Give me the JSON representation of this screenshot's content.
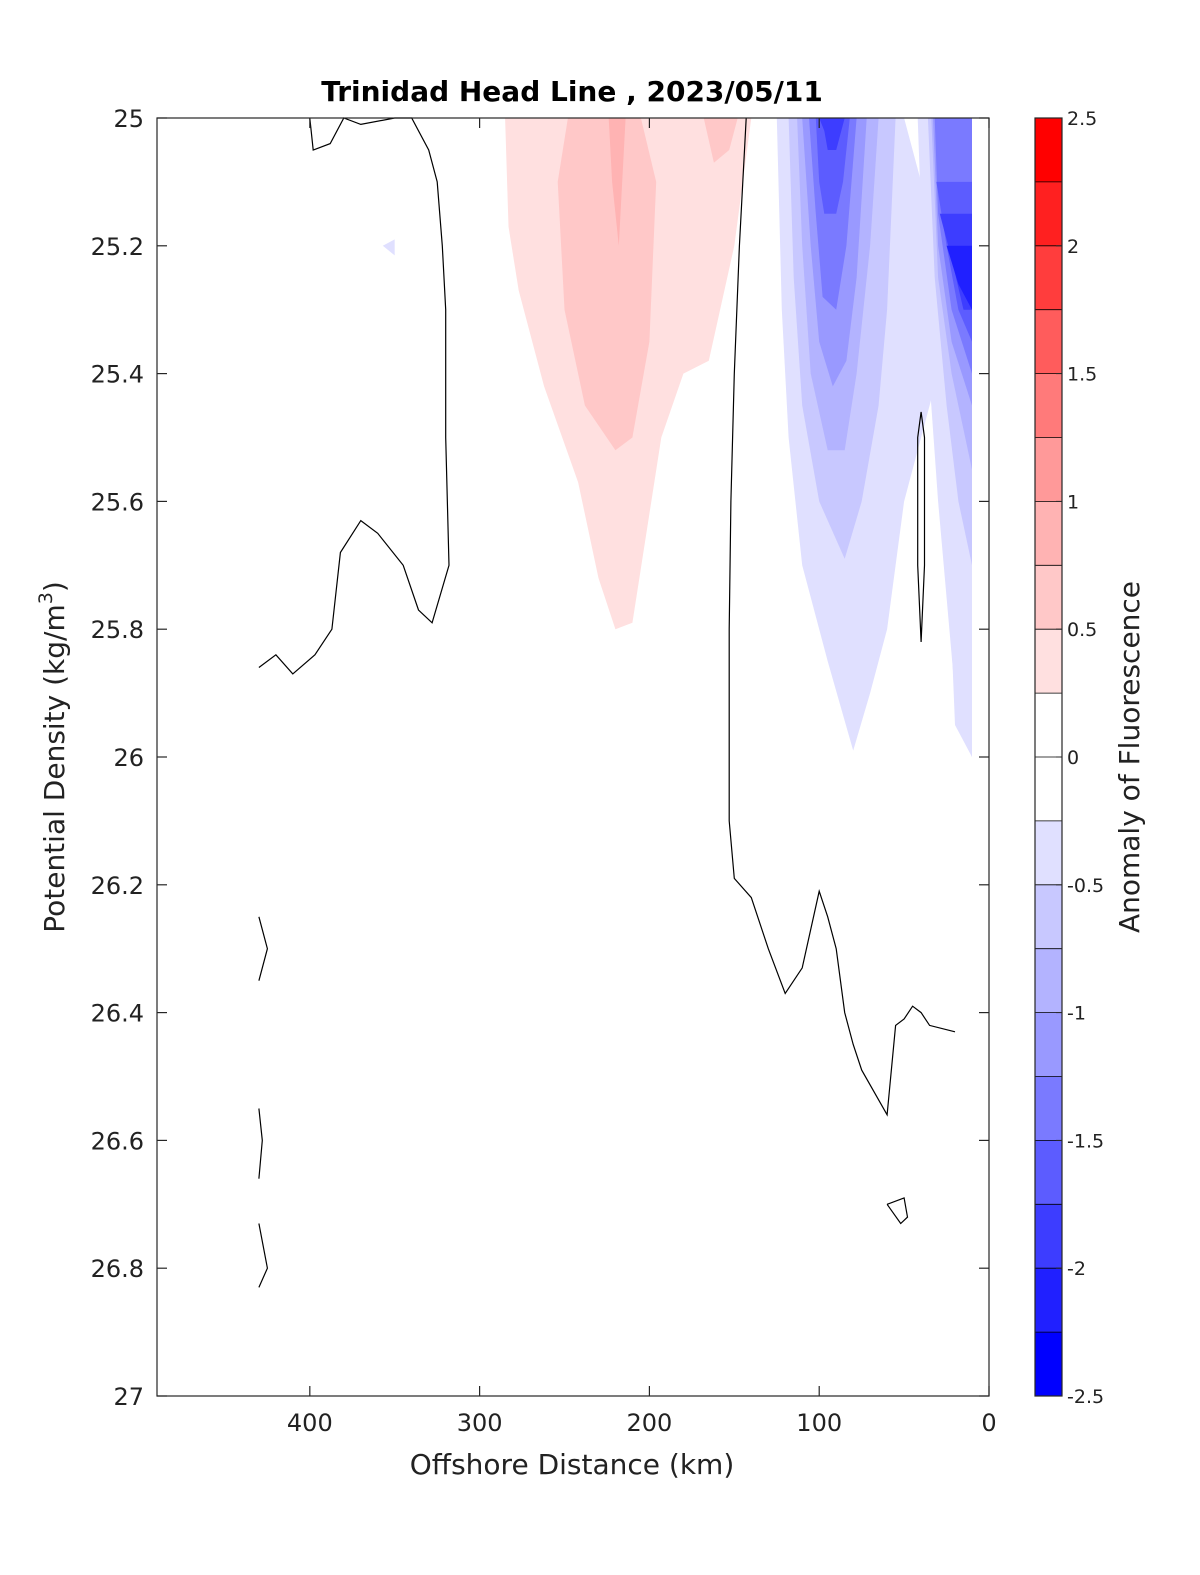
{
  "chart_data": {
    "type": "contour",
    "title": "Trinidad Head Line , 2023/05/11",
    "xlabel": "Offshore Distance (km)",
    "ylabel_main": "Potential Density (kg/m",
    "ylabel_sup": "3",
    "ylabel_close": ")",
    "xlim": [
      490,
      0
    ],
    "ylim": [
      25,
      27
    ],
    "x_reversed": true,
    "y_reversed": true,
    "xticks": [
      400,
      300,
      200,
      100,
      0
    ],
    "yticks": [
      25,
      25.2,
      25.4,
      25.6,
      25.8,
      26,
      26.2,
      26.4,
      26.6,
      26.8,
      27
    ],
    "grid": false,
    "colorbar": {
      "label": "Anomaly of Fluorescence",
      "range": [
        -2.5,
        2.5
      ],
      "ticks": [
        2.5,
        2,
        1.5,
        1,
        0.5,
        0,
        -0.5,
        -1,
        -1.5,
        -2,
        -2.5
      ],
      "levels": [
        {
          "from": 2.25,
          "to": 2.5,
          "color": "#ff0000"
        },
        {
          "from": 2.0,
          "to": 2.25,
          "color": "#ff2020"
        },
        {
          "from": 1.75,
          "to": 2.0,
          "color": "#ff3d3d"
        },
        {
          "from": 1.5,
          "to": 1.75,
          "color": "#ff5c5c"
        },
        {
          "from": 1.25,
          "to": 1.5,
          "color": "#ff7a7a"
        },
        {
          "from": 1.0,
          "to": 1.25,
          "color": "#ff9999"
        },
        {
          "from": 0.75,
          "to": 1.0,
          "color": "#ffb3b3"
        },
        {
          "from": 0.5,
          "to": 0.75,
          "color": "#ffc8c8"
        },
        {
          "from": 0.25,
          "to": 0.5,
          "color": "#ffe0e0"
        },
        {
          "from": 0.0,
          "to": 0.25,
          "color": "#ffffff"
        },
        {
          "from": -0.25,
          "to": 0.0,
          "color": "#ffffff"
        },
        {
          "from": -0.5,
          "to": -0.25,
          "color": "#e0e0ff"
        },
        {
          "from": -0.75,
          "to": -0.5,
          "color": "#c8c8ff"
        },
        {
          "from": -1.0,
          "to": -0.75,
          "color": "#b3b3ff"
        },
        {
          "from": -1.25,
          "to": -1.0,
          "color": "#9999ff"
        },
        {
          "from": -1.5,
          "to": -1.25,
          "color": "#7a7aff"
        },
        {
          "from": -1.75,
          "to": -1.5,
          "color": "#5c5cff"
        },
        {
          "from": -2.0,
          "to": -1.75,
          "color": "#3d3dff"
        },
        {
          "from": -2.25,
          "to": -2.0,
          "color": "#2020ff"
        },
        {
          "from": -2.5,
          "to": -2.25,
          "color": "#0000ff"
        }
      ]
    },
    "filled_regions": [
      {
        "level": 0.375,
        "color": "#ffe0e0",
        "points": [
          [
            285,
            25
          ],
          [
            283,
            25.17
          ],
          [
            277,
            25.27
          ],
          [
            262,
            25.42
          ],
          [
            242,
            25.57
          ],
          [
            230,
            25.72
          ],
          [
            220,
            25.8
          ],
          [
            210,
            25.79
          ],
          [
            193,
            25.5
          ],
          [
            180,
            25.4
          ],
          [
            165,
            25.38
          ],
          [
            150,
            25.2
          ],
          [
            140,
            25
          ],
          [
            285,
            25
          ]
        ]
      },
      {
        "level": 0.625,
        "color": "#ffc8c8",
        "points": [
          [
            248,
            25
          ],
          [
            254,
            25.1
          ],
          [
            250,
            25.3
          ],
          [
            238,
            25.45
          ],
          [
            220,
            25.52
          ],
          [
            210,
            25.5
          ],
          [
            200,
            25.35
          ],
          [
            196,
            25.1
          ],
          [
            205,
            25
          ],
          [
            248,
            25
          ]
        ]
      },
      {
        "level": 0.875,
        "color": "#ffb3b3",
        "points": [
          [
            224,
            25
          ],
          [
            222,
            25.1
          ],
          [
            218,
            25.2
          ],
          [
            216,
            25.1
          ],
          [
            214,
            25
          ],
          [
            224,
            25
          ]
        ]
      },
      {
        "level": 0.625,
        "color": "#ffc8c8",
        "points": [
          [
            168,
            25
          ],
          [
            162,
            25.07
          ],
          [
            153,
            25.05
          ],
          [
            148,
            25
          ],
          [
            168,
            25
          ]
        ]
      },
      {
        "level": -0.375,
        "color": "#e0e0ff",
        "points": [
          [
            125,
            25
          ],
          [
            122,
            25.3
          ],
          [
            118,
            25.5
          ],
          [
            110,
            25.7
          ],
          [
            95,
            25.85
          ],
          [
            80,
            25.99
          ],
          [
            70,
            25.9
          ],
          [
            60,
            25.8
          ],
          [
            50,
            25.6
          ],
          [
            40,
            25.5
          ],
          [
            30,
            25.4
          ],
          [
            20,
            25.4
          ],
          [
            20,
            25.6
          ],
          [
            10,
            25.62
          ],
          [
            10,
            26
          ],
          [
            20,
            25.95
          ],
          [
            30,
            25.3
          ],
          [
            40,
            25.1
          ],
          [
            50,
            25
          ],
          [
            125,
            25
          ]
        ]
      },
      {
        "level": -0.625,
        "color": "#c8c8ff",
        "points": [
          [
            118,
            25
          ],
          [
            115,
            25.25
          ],
          [
            110,
            25.45
          ],
          [
            100,
            25.6
          ],
          [
            85,
            25.69
          ],
          [
            75,
            25.6
          ],
          [
            65,
            25.45
          ],
          [
            60,
            25.3
          ],
          [
            55,
            25
          ],
          [
            118,
            25
          ]
        ]
      },
      {
        "level": -0.875,
        "color": "#b3b3ff",
        "points": [
          [
            113,
            25
          ],
          [
            110,
            25.2
          ],
          [
            105,
            25.4
          ],
          [
            95,
            25.52
          ],
          [
            85,
            25.52
          ],
          [
            78,
            25.4
          ],
          [
            70,
            25.2
          ],
          [
            65,
            25
          ],
          [
            113,
            25
          ]
        ]
      },
      {
        "level": -1.125,
        "color": "#9999ff",
        "points": [
          [
            110,
            25
          ],
          [
            105,
            25.2
          ],
          [
            100,
            25.35
          ],
          [
            92,
            25.42
          ],
          [
            84,
            25.38
          ],
          [
            78,
            25.25
          ],
          [
            72,
            25
          ],
          [
            110,
            25
          ]
        ]
      },
      {
        "level": -1.375,
        "color": "#7a7aff",
        "points": [
          [
            106,
            25
          ],
          [
            102,
            25.15
          ],
          [
            98,
            25.28
          ],
          [
            90,
            25.3
          ],
          [
            84,
            25.2
          ],
          [
            78,
            25
          ],
          [
            106,
            25
          ]
        ]
      },
      {
        "level": -1.625,
        "color": "#5c5cff",
        "points": [
          [
            102,
            25
          ],
          [
            100,
            25.1
          ],
          [
            97,
            25.15
          ],
          [
            90,
            25.15
          ],
          [
            86,
            25.1
          ],
          [
            82,
            25
          ],
          [
            102,
            25
          ]
        ]
      },
      {
        "level": -1.875,
        "color": "#3d3dff",
        "points": [
          [
            100,
            25
          ],
          [
            97,
            25.02
          ],
          [
            95,
            25.05
          ],
          [
            90,
            25.05
          ],
          [
            85,
            25
          ],
          [
            100,
            25
          ]
        ]
      },
      {
        "level": -0.375,
        "color": "#e0e0ff",
        "points": [
          [
            42,
            25
          ],
          [
            38,
            25.3
          ],
          [
            30,
            25.6
          ],
          [
            20,
            25.9
          ],
          [
            10,
            26
          ],
          [
            10,
            25
          ],
          [
            42,
            25
          ]
        ]
      },
      {
        "level": -0.625,
        "color": "#c8c8ff",
        "points": [
          [
            36,
            25
          ],
          [
            32,
            25.25
          ],
          [
            25,
            25.45
          ],
          [
            18,
            25.6
          ],
          [
            10,
            25.7
          ],
          [
            10,
            25
          ],
          [
            36,
            25
          ]
        ]
      },
      {
        "level": -0.875,
        "color": "#b3b3ff",
        "points": [
          [
            34,
            25
          ],
          [
            30,
            25.25
          ],
          [
            22,
            25.4
          ],
          [
            10,
            25.55
          ],
          [
            10,
            25
          ],
          [
            34,
            25
          ]
        ]
      },
      {
        "level": -1.125,
        "color": "#9999ff",
        "points": [
          [
            33,
            25
          ],
          [
            30,
            25.2
          ],
          [
            22,
            25.35
          ],
          [
            10,
            25.45
          ],
          [
            10,
            25
          ],
          [
            33,
            25
          ]
        ]
      },
      {
        "level": -1.375,
        "color": "#7a7aff",
        "points": [
          [
            32,
            25
          ],
          [
            30,
            25.15
          ],
          [
            22,
            25.3
          ],
          [
            10,
            25.4
          ],
          [
            10,
            25
          ],
          [
            32,
            25
          ]
        ]
      },
      {
        "level": -1.625,
        "color": "#5c5cff",
        "points": [
          [
            31,
            25.1
          ],
          [
            25,
            25.2
          ],
          [
            18,
            25.3
          ],
          [
            10,
            25.35
          ],
          [
            10,
            25.1
          ],
          [
            31,
            25.1
          ]
        ]
      },
      {
        "level": -1.875,
        "color": "#3d3dff",
        "points": [
          [
            29,
            25.15
          ],
          [
            22,
            25.22
          ],
          [
            15,
            25.3
          ],
          [
            10,
            25.3
          ],
          [
            10,
            25.15
          ],
          [
            29,
            25.15
          ]
        ]
      },
      {
        "level": -2.125,
        "color": "#2020ff",
        "points": [
          [
            25,
            25.2
          ],
          [
            18,
            25.26
          ],
          [
            10,
            25.3
          ],
          [
            10,
            25.2
          ],
          [
            25,
            25.2
          ]
        ]
      },
      {
        "level": -0.375,
        "color": "#e0e0ff",
        "points": [
          [
            357,
            25.2
          ],
          [
            350,
            25.19
          ],
          [
            350,
            25.215
          ],
          [
            357,
            25.2
          ]
        ]
      }
    ],
    "contour_lines": [
      [
        [
          400,
          25
        ],
        [
          398,
          25.05
        ],
        [
          388,
          25.04
        ],
        [
          380,
          25
        ],
        [
          370,
          25.01
        ],
        [
          350,
          25
        ],
        [
          340,
          25.0
        ],
        [
          330,
          25.05
        ],
        [
          325,
          25.1
        ],
        [
          322,
          25.2
        ],
        [
          320,
          25.3
        ],
        [
          320,
          25.5
        ],
        [
          318,
          25.7
        ],
        [
          328,
          25.79
        ],
        [
          336,
          25.77
        ],
        [
          345,
          25.7
        ],
        [
          360,
          25.65
        ],
        [
          370,
          25.63
        ],
        [
          382,
          25.68
        ],
        [
          387,
          25.8
        ],
        [
          397,
          25.84
        ],
        [
          410,
          25.87
        ],
        [
          420,
          25.84
        ],
        [
          430,
          25.86
        ]
      ],
      [
        [
          143,
          25
        ],
        [
          145,
          25.1
        ],
        [
          147,
          25.2
        ],
        [
          150,
          25.4
        ],
        [
          152,
          25.6
        ],
        [
          153,
          25.8
        ],
        [
          153,
          26.1
        ],
        [
          150,
          26.19
        ],
        [
          140,
          26.22
        ],
        [
          130,
          26.3
        ],
        [
          120,
          26.37
        ],
        [
          110,
          26.33
        ],
        [
          100,
          26.21
        ],
        [
          95,
          26.25
        ],
        [
          90,
          26.3
        ],
        [
          85,
          26.4
        ],
        [
          80,
          26.45
        ],
        [
          75,
          26.49
        ],
        [
          60,
          26.56
        ],
        [
          55,
          26.42
        ],
        [
          50,
          26.41
        ],
        [
          45,
          26.39
        ],
        [
          40,
          26.4
        ],
        [
          35,
          26.42
        ],
        [
          20,
          26.43
        ]
      ],
      [
        [
          40,
          25.46
        ],
        [
          42,
          25.5
        ],
        [
          42,
          25.7
        ],
        [
          40,
          25.82
        ],
        [
          38,
          25.7
        ],
        [
          38,
          25.5
        ],
        [
          40,
          25.46
        ]
      ],
      [
        [
          430,
          26.25
        ],
        [
          425,
          26.3
        ],
        [
          430,
          26.35
        ]
      ],
      [
        [
          430,
          26.55
        ],
        [
          428,
          26.6
        ],
        [
          430,
          26.66
        ]
      ],
      [
        [
          430,
          26.73
        ],
        [
          425,
          26.8
        ],
        [
          430,
          26.83
        ]
      ],
      [
        [
          60,
          26.7
        ],
        [
          50,
          26.69
        ],
        [
          48,
          26.72
        ],
        [
          52,
          26.73
        ],
        [
          60,
          26.7
        ]
      ]
    ]
  }
}
